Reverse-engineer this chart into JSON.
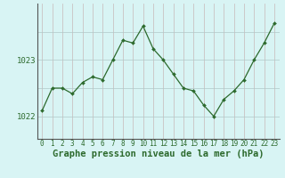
{
  "x": [
    0,
    1,
    2,
    3,
    4,
    5,
    6,
    7,
    8,
    9,
    10,
    11,
    12,
    13,
    14,
    15,
    16,
    17,
    18,
    19,
    20,
    21,
    22,
    23
  ],
  "y": [
    1022.1,
    1022.5,
    1022.5,
    1022.4,
    1022.6,
    1022.7,
    1022.65,
    1023.0,
    1023.35,
    1023.3,
    1023.6,
    1023.2,
    1023.0,
    1022.75,
    1022.5,
    1022.45,
    1022.2,
    1022.0,
    1022.3,
    1022.45,
    1022.65,
    1023.0,
    1023.3,
    1023.65
  ],
  "ylim": [
    1021.6,
    1024.0
  ],
  "yticks": [
    1022,
    1023
  ],
  "xticks": [
    0,
    1,
    2,
    3,
    4,
    5,
    6,
    7,
    8,
    9,
    10,
    11,
    12,
    13,
    14,
    15,
    16,
    17,
    18,
    19,
    20,
    21,
    22,
    23
  ],
  "xlabel": "Graphe pression niveau de la mer (hPa)",
  "line_color": "#2d6a2d",
  "marker_color": "#2d6a2d",
  "bg_color": "#d8f4f4",
  "grid_color": "#b0c8c8",
  "vgrid_color": "#c8b8b8",
  "tick_fontsize": 5.5,
  "xlabel_fontsize": 7.5,
  "ytick_labels": [
    "1022",
    "1023"
  ]
}
